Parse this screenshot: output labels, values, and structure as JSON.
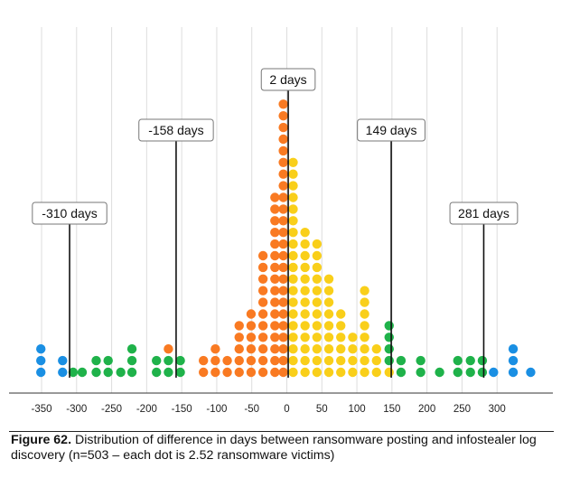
{
  "chart_data": {
    "type": "dot-histogram",
    "xlabel": "",
    "ylabel": "",
    "xlim": [
      -360,
      360
    ],
    "x_ticks": [
      -350,
      -300,
      -250,
      -200,
      -150,
      -100,
      -50,
      0,
      50,
      100,
      150,
      200,
      250,
      300
    ],
    "x_tick_labels": [
      "-350",
      "-300",
      "-250",
      "-200",
      "-150",
      "-100",
      "-50",
      "0",
      "50",
      "100",
      "150",
      "200",
      "250",
      "300"
    ],
    "bin_width": 8.3,
    "units_per_dot": 2.52,
    "colors": {
      "outer": "#1a8fe3",
      "mid": "#1fb24a",
      "inner_left": "#f97a22",
      "inner_right": "#f9cf1a",
      "line": "#111111",
      "grid": "#dddddd"
    },
    "categories": [
      "outer",
      "mid",
      "inner_left",
      "inner_right"
    ],
    "columns": [
      {
        "x": -351,
        "count": 3,
        "cat": "outer"
      },
      {
        "x": -320,
        "count": 2,
        "cat": "outer"
      },
      {
        "x": -305,
        "count": 1,
        "cat": "mid"
      },
      {
        "x": -292,
        "count": 1,
        "cat": "mid"
      },
      {
        "x": -272,
        "count": 2,
        "cat": "mid"
      },
      {
        "x": -255,
        "count": 2,
        "cat": "mid"
      },
      {
        "x": -237,
        "count": 1,
        "cat": "mid"
      },
      {
        "x": -221,
        "count": 3,
        "cat": "mid"
      },
      {
        "x": -186,
        "count": 2,
        "cat": "mid"
      },
      {
        "x": -169,
        "count": 2,
        "cat": "mid"
      },
      {
        "x": -169,
        "count": 1,
        "cat": "inner_left",
        "start": 2
      },
      {
        "x": -152,
        "count": 2,
        "cat": "mid"
      },
      {
        "x": -119,
        "count": 2,
        "cat": "inner_left"
      },
      {
        "x": -102,
        "count": 3,
        "cat": "inner_left"
      },
      {
        "x": -85,
        "count": 2,
        "cat": "inner_left"
      },
      {
        "x": -68,
        "count": 5,
        "cat": "inner_left"
      },
      {
        "x": -51,
        "count": 6,
        "cat": "inner_left"
      },
      {
        "x": -34,
        "count": 11,
        "cat": "inner_left"
      },
      {
        "x": -17,
        "count": 16,
        "cat": "inner_left"
      },
      {
        "x": -5,
        "count": 24,
        "cat": "inner_left"
      },
      {
        "x": 9,
        "count": 19,
        "cat": "inner_right"
      },
      {
        "x": 26,
        "count": 13,
        "cat": "inner_right"
      },
      {
        "x": 43,
        "count": 12,
        "cat": "inner_right"
      },
      {
        "x": 60,
        "count": 9,
        "cat": "inner_right"
      },
      {
        "x": 77,
        "count": 6,
        "cat": "inner_right"
      },
      {
        "x": 94,
        "count": 4,
        "cat": "inner_right"
      },
      {
        "x": 111,
        "count": 8,
        "cat": "inner_right"
      },
      {
        "x": 128,
        "count": 3,
        "cat": "inner_right"
      },
      {
        "x": 146,
        "count": 1,
        "cat": "inner_right"
      },
      {
        "x": 146,
        "count": 4,
        "cat": "mid",
        "start": 1
      },
      {
        "x": 163,
        "count": 2,
        "cat": "mid"
      },
      {
        "x": 191,
        "count": 2,
        "cat": "mid"
      },
      {
        "x": 218,
        "count": 1,
        "cat": "mid"
      },
      {
        "x": 244,
        "count": 2,
        "cat": "mid"
      },
      {
        "x": 262,
        "count": 2,
        "cat": "mid"
      },
      {
        "x": 279,
        "count": 2,
        "cat": "mid"
      },
      {
        "x": 295,
        "count": 1,
        "cat": "outer"
      },
      {
        "x": 323,
        "count": 3,
        "cat": "outer"
      },
      {
        "x": 348,
        "count": 1,
        "cat": "outer"
      }
    ],
    "annotations": [
      {
        "x": -310,
        "label": "-310 days"
      },
      {
        "x": -158,
        "label": "-158 days"
      },
      {
        "x": 2,
        "label": "2 days"
      },
      {
        "x": 149,
        "label": "149 days"
      },
      {
        "x": 281,
        "label": "281 days"
      }
    ]
  },
  "caption": {
    "figure_label": "Figure 62.",
    "text": "Distribution of difference in days between ransomware posting and infostealer log discovery (n=503 – each dot is 2.52 ransomware victims)"
  }
}
